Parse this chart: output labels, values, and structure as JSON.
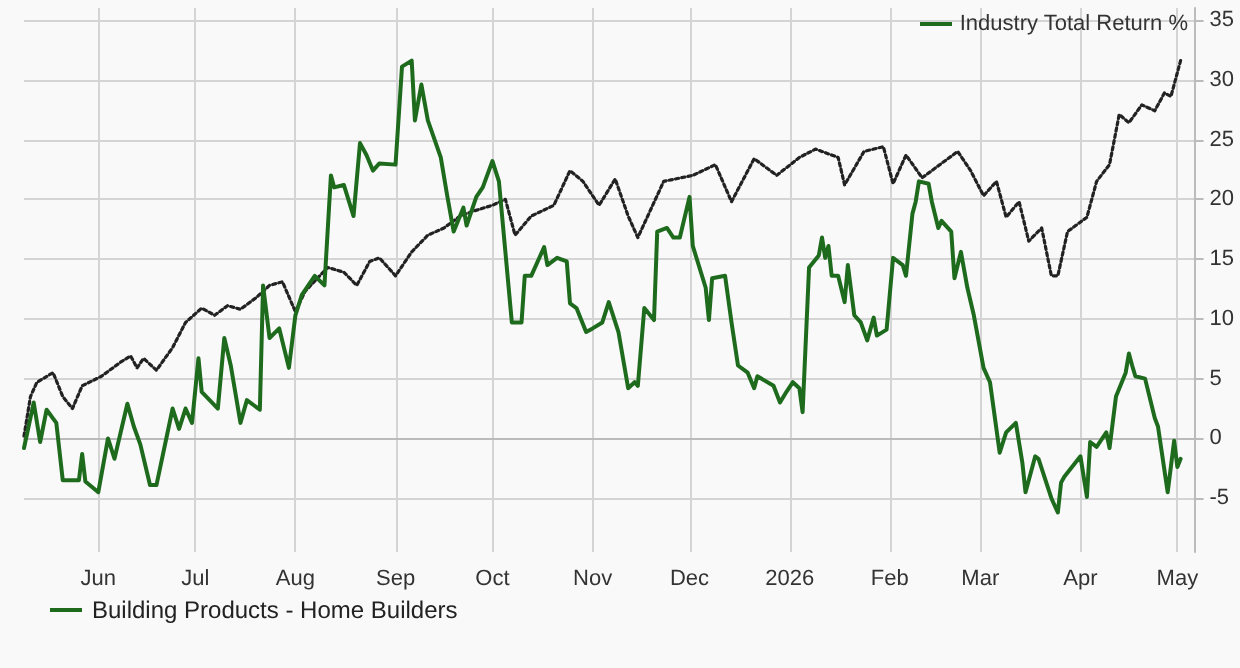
{
  "chart_data": {
    "type": "line",
    "annotations": [
      "Industry Total Return %"
    ],
    "xlim": [
      "2025-05-09",
      "2026-05-06"
    ],
    "xticks": [
      {
        "value": "2025-06-01",
        "label": "Jun"
      },
      {
        "value": "2025-07-01",
        "label": "Jul"
      },
      {
        "value": "2025-08-01",
        "label": "Aug"
      },
      {
        "value": "2025-09-01",
        "label": "Sep"
      },
      {
        "value": "2025-10-01",
        "label": "Oct"
      },
      {
        "value": "2025-11-01",
        "label": "Nov"
      },
      {
        "value": "2025-12-01",
        "label": "Dec"
      },
      {
        "value": "2026-01-01",
        "label": "2026"
      },
      {
        "value": "2026-02-01",
        "label": "Feb"
      },
      {
        "value": "2026-03-01",
        "label": "Mar"
      },
      {
        "value": "2026-04-01",
        "label": "Apr"
      },
      {
        "value": "2026-05-01",
        "label": "May"
      }
    ],
    "ylim": [
      -9.5,
      36
    ],
    "yticks": [
      -5,
      0,
      5,
      10,
      15,
      20,
      25,
      30,
      35
    ],
    "grid": true,
    "legend": "bottom left",
    "marker": "none",
    "series": [
      {
        "name": "Building Products - Home Builders",
        "color": "#1e6b1e",
        "line_style": "solid",
        "x": [
          "2025-05-09",
          "2025-05-12",
          "2025-05-14",
          "2025-05-16",
          "2025-05-19",
          "2025-05-21",
          "2025-05-26",
          "2025-05-27",
          "2025-05-28",
          "2025-06-01",
          "2025-06-04",
          "2025-06-06",
          "2025-06-10",
          "2025-06-12",
          "2025-06-14",
          "2025-06-17",
          "2025-06-19",
          "2025-06-24",
          "2025-06-26",
          "2025-06-28",
          "2025-06-30",
          "2025-07-02",
          "2025-07-03",
          "2025-07-08",
          "2025-07-10",
          "2025-07-12",
          "2025-07-15",
          "2025-07-17",
          "2025-07-21",
          "2025-07-22",
          "2025-07-24",
          "2025-07-27",
          "2025-07-30",
          "2025-08-01",
          "2025-08-03",
          "2025-08-07",
          "2025-08-10",
          "2025-08-12",
          "2025-08-13",
          "2025-08-16",
          "2025-08-19",
          "2025-08-21",
          "2025-08-23",
          "2025-08-25",
          "2025-08-27",
          "2025-09-01",
          "2025-09-03",
          "2025-09-06",
          "2025-09-07",
          "2025-09-09",
          "2025-09-11",
          "2025-09-15",
          "2025-09-17",
          "2025-09-19",
          "2025-09-22",
          "2025-09-23",
          "2025-09-26",
          "2025-09-28",
          "2025-10-01",
          "2025-10-03",
          "2025-10-05",
          "2025-10-07",
          "2025-10-10",
          "2025-10-11",
          "2025-10-13",
          "2025-10-17",
          "2025-10-18",
          "2025-10-21",
          "2025-10-24",
          "2025-10-25",
          "2025-10-27",
          "2025-10-30",
          "2025-11-01",
          "2025-11-04",
          "2025-11-06",
          "2025-11-09",
          "2025-11-12",
          "2025-11-14",
          "2025-11-15",
          "2025-11-17",
          "2025-11-20",
          "2025-11-21",
          "2025-11-24",
          "2025-11-26",
          "2025-11-28",
          "2025-12-01",
          "2025-12-02",
          "2025-12-06",
          "2025-12-07",
          "2025-12-08",
          "2025-12-12",
          "2025-12-14",
          "2025-12-16",
          "2025-12-19",
          "2025-12-21",
          "2025-12-22",
          "2025-12-27",
          "2025-12-29",
          "2025-12-31",
          "2026-01-02",
          "2026-01-04",
          "2026-01-05",
          "2026-01-07",
          "2026-01-10",
          "2026-01-11",
          "2026-01-12",
          "2026-01-13",
          "2026-01-14",
          "2026-01-16",
          "2026-01-18",
          "2026-01-19",
          "2026-01-21",
          "2026-01-23",
          "2026-01-25",
          "2026-01-27",
          "2026-01-28",
          "2026-01-31",
          "2026-02-02",
          "2026-02-05",
          "2026-02-06",
          "2026-02-08",
          "2026-02-09",
          "2026-02-10",
          "2026-02-13",
          "2026-02-14",
          "2026-02-16",
          "2026-02-17",
          "2026-02-20",
          "2026-02-21",
          "2026-02-23",
          "2026-02-25",
          "2026-02-27",
          "2026-03-02",
          "2026-03-04",
          "2026-03-07",
          "2026-03-09",
          "2026-03-12",
          "2026-03-14",
          "2026-03-15",
          "2026-03-18",
          "2026-03-19",
          "2026-03-23",
          "2026-03-25",
          "2026-03-26",
          "2026-03-27",
          "2026-04-01",
          "2026-04-03",
          "2026-04-04",
          "2026-04-06",
          "2026-04-09",
          "2026-04-10",
          "2026-04-12",
          "2026-04-15",
          "2026-04-16",
          "2026-04-17",
          "2026-04-18",
          "2026-04-21",
          "2026-04-24",
          "2026-04-25",
          "2026-04-28",
          "2026-04-30",
          "2026-05-01",
          "2026-05-02"
        ],
        "values": [
          -0.8,
          3.0,
          -0.3,
          2.4,
          1.3,
          -3.5,
          -3.5,
          -1.3,
          -3.6,
          -4.5,
          0,
          -1.7,
          2.9,
          1.0,
          -0.5,
          -3.9,
          -3.9,
          2.5,
          0.8,
          2.5,
          1.3,
          6.7,
          3.9,
          2.5,
          8.4,
          6.1,
          1.3,
          3.2,
          2.4,
          12.8,
          8.4,
          9.2,
          5.9,
          10.3,
          12.0,
          13.6,
          12.8,
          22.0,
          21.0,
          21.2,
          18.6,
          24.7,
          23.7,
          22.4,
          23.0,
          22.9,
          31.1,
          31.6,
          26.6,
          29.6,
          26.6,
          23.5,
          20.3,
          17.3,
          19.3,
          17.8,
          20.2,
          21.0,
          23.2,
          21.5,
          15.6,
          9.7,
          9.7,
          13.6,
          13.6,
          16.0,
          14.5,
          15.1,
          14.8,
          11.3,
          10.9,
          8.9,
          9.2,
          9.7,
          11.4,
          8.9,
          4.2,
          4.7,
          4.4,
          10.9,
          9.9,
          17.3,
          17.6,
          16.8,
          16.8,
          20.2,
          16.1,
          12.6,
          9.9,
          13.4,
          13.6,
          9.7,
          6.1,
          5.5,
          4.2,
          5.2,
          4.4,
          3.0,
          3.9,
          4.7,
          4.2,
          2.2,
          14.3,
          15.3,
          16.8,
          15.1,
          16.1,
          13.6,
          13.6,
          11.4,
          14.5,
          10.3,
          9.7,
          8.2,
          10.1,
          8.6,
          9.1,
          15.1,
          14.5,
          13.6,
          18.8,
          19.8,
          21.5,
          21.3,
          19.8,
          17.6,
          18.2,
          17.3,
          13.4,
          15.6,
          12.6,
          10.3,
          5.9,
          4.7,
          -1.2,
          0.5,
          1.3,
          -2.0,
          -4.5,
          -1.5,
          -1.7,
          -5.0,
          -6.2,
          -3.7,
          -3.2,
          -1.5,
          -4.9,
          -0.3,
          -0.7,
          0.5,
          -0.8,
          3.5,
          5.5,
          7.1,
          6.1,
          5.2,
          5.0,
          1.7,
          1.0,
          -4.5,
          -0.2,
          -2.4,
          -1.7
        ]
      },
      {
        "color": "#222222",
        "line_style": "dotted",
        "x": [
          "2025-05-09",
          "2025-05-11",
          "2025-05-13",
          "2025-05-18",
          "2025-05-21",
          "2025-05-24",
          "2025-05-27",
          "2025-06-02",
          "2025-06-08",
          "2025-06-11",
          "2025-06-13",
          "2025-06-15",
          "2025-06-19",
          "2025-06-24",
          "2025-06-28",
          "2025-07-03",
          "2025-07-07",
          "2025-07-11",
          "2025-07-15",
          "2025-07-20",
          "2025-07-24",
          "2025-07-28",
          "2025-08-01",
          "2025-08-04",
          "2025-08-11",
          "2025-08-16",
          "2025-08-20",
          "2025-08-24",
          "2025-08-27",
          "2025-09-01",
          "2025-09-06",
          "2025-09-11",
          "2025-09-16",
          "2025-09-21",
          "2025-09-25",
          "2025-10-01",
          "2025-10-05",
          "2025-10-08",
          "2025-10-13",
          "2025-10-20",
          "2025-10-25",
          "2025-10-29",
          "2025-11-03",
          "2025-11-08",
          "2025-11-12",
          "2025-11-15",
          "2025-11-23",
          "2025-12-02",
          "2025-12-09",
          "2025-12-14",
          "2025-12-21",
          "2025-12-28",
          "2026-01-04",
          "2026-01-09",
          "2026-01-16",
          "2026-01-18",
          "2026-01-24",
          "2026-01-30",
          "2026-02-02",
          "2026-02-06",
          "2026-02-11",
          "2026-02-18",
          "2026-02-22",
          "2026-02-26",
          "2026-03-02",
          "2026-03-06",
          "2026-03-09",
          "2026-03-13",
          "2026-03-16",
          "2026-03-20",
          "2026-03-23",
          "2026-03-25",
          "2026-03-28",
          "2026-04-03",
          "2026-04-06",
          "2026-04-10",
          "2026-04-13",
          "2026-04-16",
          "2026-04-20",
          "2026-04-24",
          "2026-04-27",
          "2026-04-29",
          "2026-05-02"
        ],
        "values": [
          0.2,
          3.5,
          4.7,
          5.5,
          3.5,
          2.5,
          4.4,
          5.2,
          6.4,
          6.9,
          5.9,
          6.7,
          5.7,
          7.6,
          9.7,
          10.9,
          10.3,
          11.1,
          10.8,
          11.8,
          12.8,
          13.1,
          10.6,
          12.3,
          14.3,
          13.9,
          12.8,
          14.8,
          15.1,
          13.6,
          15.6,
          17.0,
          17.6,
          18.6,
          19.0,
          19.5,
          20.0,
          17.0,
          18.6,
          19.5,
          22.4,
          21.5,
          19.5,
          21.7,
          18.6,
          16.8,
          21.5,
          22.0,
          22.9,
          19.8,
          23.4,
          22.0,
          23.5,
          24.2,
          23.5,
          21.2,
          24.0,
          24.4,
          21.3,
          23.7,
          21.8,
          23.2,
          24.0,
          22.4,
          20.3,
          21.5,
          18.5,
          19.8,
          16.5,
          17.6,
          13.6,
          13.6,
          17.3,
          18.5,
          21.5,
          22.9,
          27.1,
          26.4,
          27.9,
          27.4,
          28.9,
          28.6,
          31.6
        ]
      }
    ]
  }
}
